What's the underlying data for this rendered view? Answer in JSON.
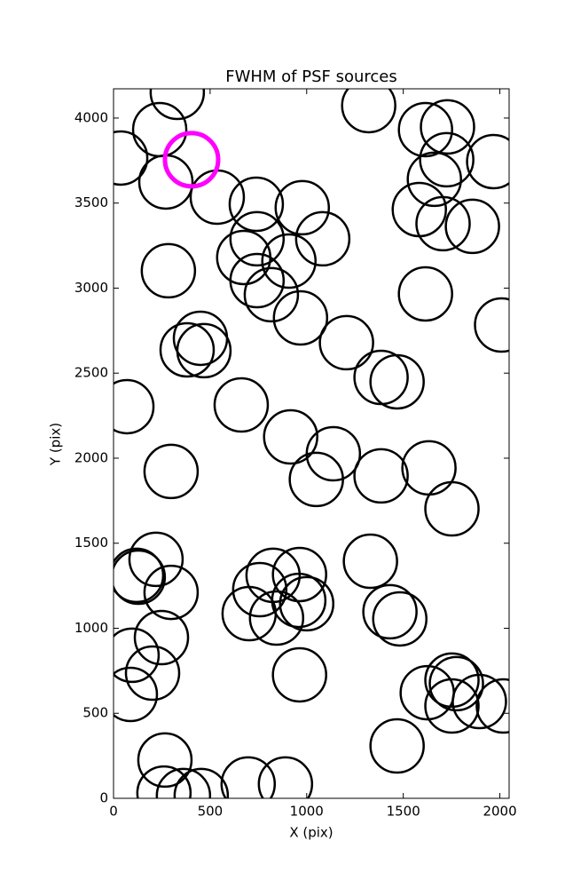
{
  "chart_data": {
    "type": "scatter",
    "title": "FWHM of PSF sources",
    "xlabel": "X (pix)",
    "ylabel": "Y (pix)",
    "xlim": [
      0,
      2048
    ],
    "ylim": [
      0,
      4172
    ],
    "xticks": [
      0,
      500,
      1000,
      1500,
      2000
    ],
    "yticks": [
      0,
      500,
      1000,
      1500,
      2000,
      2500,
      3000,
      3500,
      4000
    ],
    "series": [
      {
        "color": "#000000",
        "line_width": 2.5,
        "x": [
          330,
          239,
          37,
          271,
          537,
          739,
          977,
          1083,
          743,
          674,
          908,
          743,
          817,
          968,
          284,
          1321,
          1615,
          1729,
          1725,
          1661,
          1583,
          1706,
          1858,
          1968,
          1615,
          2009,
          1206,
          1385,
          1468,
          450,
          381,
          468,
          69,
          661,
          917,
          1138,
          1050,
          1385,
          1633,
          1752,
          298,
          220,
          128,
          119,
          298,
          248,
          96,
          202,
          87,
          826,
          757,
          963,
          959,
          1000,
          702,
          844,
          1330,
          1431,
          1482,
          963,
          1624,
          1752,
          1775,
          1752,
          1894,
          2018,
          1468,
          266,
          261,
          362,
          454,
          697,
          890
        ],
        "y": [
          4151,
          3932,
          3765,
          3624,
          3535,
          3493,
          3473,
          3290,
          3290,
          3180,
          3159,
          3044,
          2961,
          2825,
          3102,
          4073,
          3932,
          3948,
          3755,
          3640,
          3462,
          3379,
          3363,
          3744,
          2966,
          2783,
          2679,
          2475,
          2449,
          2705,
          2637,
          2632,
          2303,
          2313,
          2125,
          2026,
          1875,
          1896,
          1943,
          1702,
          1922,
          1405,
          1300,
          1311,
          1211,
          945,
          841,
          736,
          611,
          1311,
          1227,
          1316,
          1164,
          1144,
          1086,
          1060,
          1394,
          1097,
          1055,
          726,
          621,
          695,
          674,
          543,
          569,
          543,
          308,
          225,
          31,
          16,
          16,
          84,
          84
        ]
      },
      {
        "color": "#ff00ff",
        "line_width": 5,
        "x": [
          404
        ],
        "y": [
          3755
        ]
      }
    ]
  }
}
